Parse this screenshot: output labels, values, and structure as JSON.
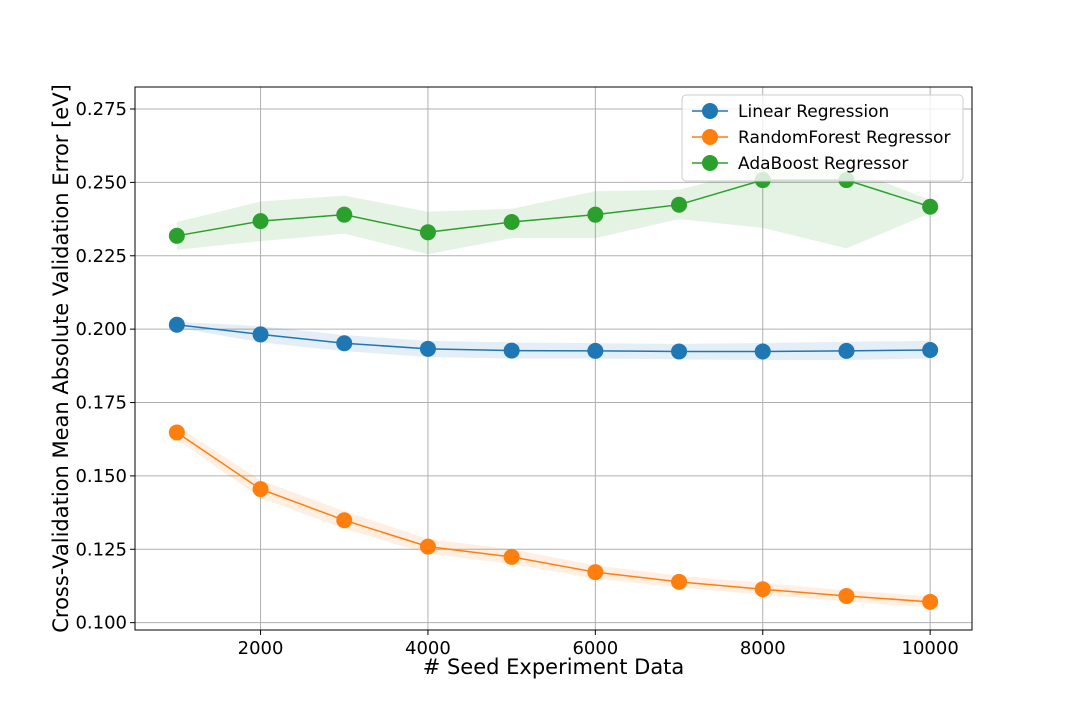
{
  "chart_data": {
    "type": "line",
    "title": "",
    "xlabel": "# Seed Experiment Data",
    "ylabel": "Cross-Validation Mean Absolute Validation Error [eV]",
    "xlim": [
      500,
      10500
    ],
    "ylim": [
      0.0975,
      0.2825
    ],
    "xticks": [
      2000,
      4000,
      6000,
      8000,
      10000
    ],
    "xtick_labels": [
      "2000",
      "4000",
      "6000",
      "8000",
      "10000"
    ],
    "yticks": [
      0.1,
      0.125,
      0.15,
      0.175,
      0.2,
      0.225,
      0.25,
      0.275
    ],
    "ytick_labels": [
      "0.100",
      "0.125",
      "0.150",
      "0.175",
      "0.200",
      "0.225",
      "0.250",
      "0.275"
    ],
    "grid": true,
    "legend_position": "top-right",
    "x": [
      1000,
      2000,
      3000,
      4000,
      5000,
      6000,
      7000,
      8000,
      9000,
      10000
    ],
    "series": [
      {
        "name": "Linear Regression",
        "color": "#1f77b4",
        "values": [
          0.2015,
          0.1982,
          0.1952,
          0.1933,
          0.1927,
          0.1926,
          0.1924,
          0.1924,
          0.1926,
          0.1929
        ],
        "lower": [
          0.2005,
          0.1955,
          0.1925,
          0.1905,
          0.19,
          0.19,
          0.1897,
          0.1895,
          0.1895,
          0.19
        ],
        "upper": [
          0.2025,
          0.201,
          0.198,
          0.196,
          0.1955,
          0.1952,
          0.195,
          0.1953,
          0.1957,
          0.196
        ]
      },
      {
        "name": "RandomForest Regressor",
        "color": "#ff7f0e",
        "values": [
          0.1648,
          0.1455,
          0.1349,
          0.1259,
          0.1224,
          0.1172,
          0.1139,
          0.1114,
          0.1091,
          0.1071
        ],
        "lower": [
          0.1625,
          0.1425,
          0.132,
          0.1235,
          0.12,
          0.115,
          0.112,
          0.1095,
          0.1072,
          0.1052
        ],
        "upper": [
          0.167,
          0.1485,
          0.138,
          0.1285,
          0.125,
          0.1195,
          0.116,
          0.1135,
          0.111,
          0.109
        ]
      },
      {
        "name": "AdaBoost Regressor",
        "color": "#2ca02c",
        "values": [
          0.2318,
          0.2368,
          0.239,
          0.233,
          0.2365,
          0.239,
          0.2424,
          0.2508,
          0.2508,
          0.2417
        ],
        "lower": [
          0.227,
          0.23,
          0.2325,
          0.2255,
          0.231,
          0.231,
          0.2375,
          0.2345,
          0.2275,
          0.2395
        ],
        "upper": [
          0.2365,
          0.2435,
          0.2455,
          0.24,
          0.241,
          0.247,
          0.2475,
          0.255,
          0.255,
          0.244
        ]
      }
    ]
  }
}
